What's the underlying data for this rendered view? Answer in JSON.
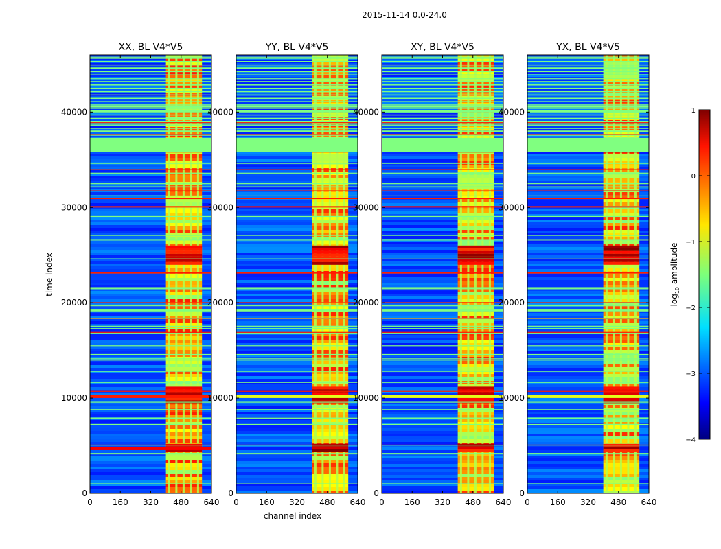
{
  "chart_data": {
    "type": "heatmap",
    "suptitle": "2015-11-14 0.0-24.0",
    "xlabel": "channel index",
    "ylabel": "time index",
    "x_ticks": [
      0,
      160,
      320,
      480,
      640
    ],
    "y_ticks": [
      0,
      10000,
      20000,
      30000,
      40000
    ],
    "xlim": [
      0,
      640
    ],
    "ylim": [
      0,
      46000
    ],
    "panels": [
      {
        "title": "XX, BL V4*V5"
      },
      {
        "title": "YY, BL V4*V5"
      },
      {
        "title": "XY, BL V4*V5"
      },
      {
        "title": "YX, BL V4*V5"
      }
    ],
    "colorbar": {
      "label": "log",
      "label_sub": "10",
      "label_rest": " amplitude",
      "range": [
        -4,
        1
      ],
      "ticks": [
        1,
        0,
        -1,
        -2,
        -3,
        -4
      ],
      "tick_labels": [
        "1",
        "0",
        "−1",
        "−2",
        "−3",
        "−4"
      ],
      "colormap": "jet"
    },
    "rfi_channel_band": [
      400,
      590
    ],
    "flagged_time_band": [
      35800,
      37300
    ]
  }
}
